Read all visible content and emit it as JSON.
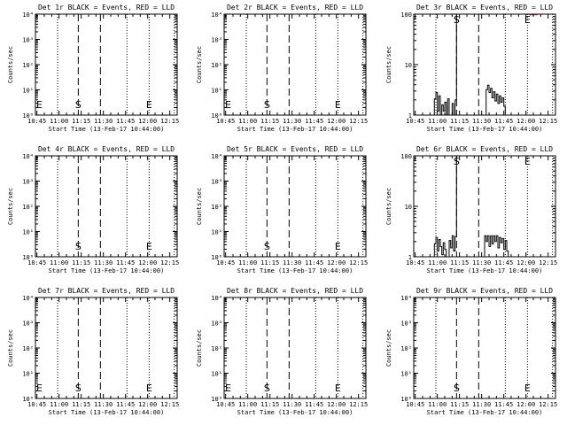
{
  "figure": {
    "background": "#ffffff",
    "event_color": "#000000",
    "lld_color": "#ff0000"
  },
  "chart_data": [
    {
      "type": "line",
      "title": "Det 1r BLACK = Events, RED = LLD",
      "xlabel": "Start Time (13-Feb-17 10:44:00)",
      "ylabel": "Counts/sec",
      "x_ticks": [
        "10:45",
        "11:00",
        "11:15",
        "11:30",
        "11:45",
        "12:00",
        "12:15"
      ],
      "xlim": [
        "10:44",
        "12:20"
      ],
      "y_scale": "log",
      "ylim": [
        1,
        10000
      ],
      "y_ticks": [
        "10⁰",
        "10¹",
        "10²",
        "10³",
        "10⁴"
      ],
      "dotted_lines": [
        "10:59",
        "11:46",
        "12:01",
        "12:18"
      ],
      "dashed_lines": [
        "11:13",
        "11:28"
      ],
      "markers": [
        {
          "text": "E",
          "at": "10:45"
        },
        {
          "text": "S",
          "at": "11:13"
        },
        {
          "text": "E",
          "at": "12:01"
        }
      ],
      "series": []
    },
    {
      "type": "line",
      "title": "Det 2r BLACK = Events, RED = LLD",
      "xlabel": "Start Time (13-Feb-17 10:44:00)",
      "ylabel": "Counts/sec",
      "x_ticks": [
        "10:45",
        "11:00",
        "11:15",
        "11:30",
        "11:45",
        "12:00",
        "12:15"
      ],
      "xlim": [
        "10:44",
        "12:20"
      ],
      "y_scale": "log",
      "ylim": [
        1,
        10000
      ],
      "y_ticks": [
        "10⁰",
        "10¹",
        "10²",
        "10³",
        "10⁴"
      ],
      "dotted_lines": [
        "10:59",
        "11:46",
        "12:01",
        "12:18"
      ],
      "dashed_lines": [
        "11:13",
        "11:28"
      ],
      "markers": [
        {
          "text": "E",
          "at": "10:45"
        },
        {
          "text": "S",
          "at": "11:13"
        },
        {
          "text": "E",
          "at": "12:01"
        }
      ],
      "series": []
    },
    {
      "type": "line",
      "title": "Det 3r BLACK = Events, RED = LLD",
      "xlabel": "Start Time (13-Feb-17 10:44:00)",
      "ylabel": "Counts/sec",
      "x_ticks": [
        "10:45",
        "11:00",
        "11:15",
        "11:30",
        "11:45",
        "12:00",
        "12:15"
      ],
      "xlim": [
        "10:44",
        "12:20"
      ],
      "y_scale": "log",
      "ylim": [
        1,
        100
      ],
      "y_ticks": [
        "1",
        "10",
        "100"
      ],
      "dotted_lines": [
        "10:59",
        "11:46",
        "12:01",
        "12:18"
      ],
      "dashed_lines": [
        "11:13",
        "11:28"
      ],
      "markers": [
        {
          "text": "S",
          "at": "11:13"
        },
        {
          "text": "E",
          "at": "12:01"
        }
      ],
      "series": [
        {
          "color": "#000000",
          "points": [
            [
              "10:58",
              1
            ],
            [
              "10:58",
              2.1
            ],
            [
              "10:59",
              2.1
            ],
            [
              "10:59",
              2.8
            ],
            [
              "11:00",
              2.8
            ],
            [
              "11:00",
              1.2
            ],
            [
              "11:01",
              1.2
            ],
            [
              "11:01",
              2.4
            ],
            [
              "11:02",
              2.4
            ],
            [
              "11:02",
              1
            ],
            [
              "11:03",
              1
            ],
            [
              "11:03",
              1.6
            ],
            [
              "11:04",
              1.6
            ],
            [
              "11:04",
              1.2
            ],
            [
              "11:05",
              1.2
            ],
            [
              "11:05",
              1.8
            ],
            [
              "11:06",
              1.8
            ],
            [
              "11:06",
              1
            ],
            [
              "11:07",
              1
            ],
            [
              "11:07",
              2.1
            ],
            [
              "11:08",
              2.1
            ],
            [
              "11:08",
              1
            ],
            [
              "11:10",
              1
            ],
            [
              "11:10",
              1.7
            ],
            [
              "11:11",
              1.7
            ],
            [
              "11:11",
              1
            ],
            [
              "11:12",
              1
            ],
            [
              "11:12",
              2.0
            ],
            [
              "11:13",
              2.0
            ],
            [
              "11:13",
              100
            ]
          ]
        },
        {
          "color": "#000000",
          "points": [
            [
              "11:33",
              1
            ],
            [
              "11:33",
              3.2
            ],
            [
              "11:34",
              3.2
            ],
            [
              "11:34",
              3.9
            ],
            [
              "11:35",
              3.9
            ],
            [
              "11:35",
              2.8
            ],
            [
              "11:36",
              2.8
            ],
            [
              "11:36",
              3.4
            ],
            [
              "11:37",
              3.4
            ],
            [
              "11:37",
              2.2
            ],
            [
              "11:38",
              2.2
            ],
            [
              "11:38",
              2.9
            ],
            [
              "11:39",
              2.9
            ],
            [
              "11:39",
              1.9
            ],
            [
              "11:40",
              1.9
            ],
            [
              "11:40",
              2.6
            ],
            [
              "11:41",
              2.6
            ],
            [
              "11:41",
              1.7
            ],
            [
              "11:42",
              1.7
            ],
            [
              "11:42",
              2.4
            ],
            [
              "11:43",
              2.4
            ],
            [
              "11:43",
              1.8
            ],
            [
              "11:44",
              1.8
            ],
            [
              "11:44",
              2.2
            ],
            [
              "11:45",
              2.2
            ],
            [
              "11:45",
              1.5
            ],
            [
              "11:46",
              1.5
            ],
            [
              "11:46",
              1
            ]
          ]
        },
        {
          "color": "#ff0000",
          "points": [
            [
              "12:02",
              100
            ],
            [
              "12:03",
              96
            ],
            [
              "12:04",
              100
            ],
            [
              "12:05",
              95
            ],
            [
              "12:06",
              100
            ],
            [
              "12:07",
              97
            ],
            [
              "12:08",
              100
            ]
          ]
        }
      ]
    },
    {
      "type": "line",
      "title": "Det 4r BLACK = Events, RED = LLD",
      "xlabel": "Start Time (13-Feb-17 10:44:00)",
      "ylabel": "Counts/sec",
      "x_ticks": [
        "10:45",
        "11:00",
        "11:15",
        "11:30",
        "11:45",
        "12:00",
        "12:15"
      ],
      "xlim": [
        "10:44",
        "12:20"
      ],
      "y_scale": "log",
      "ylim": [
        1,
        10000
      ],
      "y_ticks": [
        "10⁰",
        "10¹",
        "10²",
        "10³",
        "10⁴"
      ],
      "dotted_lines": [
        "10:59",
        "11:46",
        "12:01",
        "12:18"
      ],
      "dashed_lines": [
        "11:13",
        "11:28"
      ],
      "markers": [
        {
          "text": "S",
          "at": "11:13"
        },
        {
          "text": "E",
          "at": "12:01"
        }
      ],
      "series": []
    },
    {
      "type": "line",
      "title": "Det 5r BLACK = Events, RED = LLD",
      "xlabel": "Start Time (13-Feb-17 10:44:00)",
      "ylabel": "Counts/sec",
      "x_ticks": [
        "10:45",
        "11:00",
        "11:15",
        "11:30",
        "11:45",
        "12:00",
        "12:15"
      ],
      "xlim": [
        "10:44",
        "12:20"
      ],
      "y_scale": "log",
      "ylim": [
        1,
        10000
      ],
      "y_ticks": [
        "10⁰",
        "10¹",
        "10²",
        "10³",
        "10⁴"
      ],
      "dotted_lines": [
        "10:59",
        "11:46",
        "12:01",
        "12:18"
      ],
      "dashed_lines": [
        "11:13",
        "11:28"
      ],
      "markers": [
        {
          "text": "S",
          "at": "11:13"
        },
        {
          "text": "E",
          "at": "12:01"
        }
      ],
      "series": []
    },
    {
      "type": "line",
      "title": "Det 6r BLACK = Events, RED = LLD",
      "xlabel": "Start Time (13-Feb-17 10:44:00)",
      "ylabel": "Counts/sec",
      "x_ticks": [
        "10:45",
        "11:00",
        "11:15",
        "11:30",
        "11:45",
        "12:00",
        "12:15"
      ],
      "xlim": [
        "10:44",
        "12:20"
      ],
      "y_scale": "log",
      "ylim": [
        1,
        100
      ],
      "y_ticks": [
        "1",
        "10",
        "100"
      ],
      "dotted_lines": [
        "10:59",
        "11:46",
        "12:01",
        "12:18"
      ],
      "dashed_lines": [
        "11:13",
        "11:28"
      ],
      "markers": [
        {
          "text": "S",
          "at": "11:13"
        },
        {
          "text": "E",
          "at": "12:01"
        }
      ],
      "series": [
        {
          "color": "#000000",
          "points": [
            [
              "10:58",
              1
            ],
            [
              "10:58",
              1.8
            ],
            [
              "10:59",
              1.8
            ],
            [
              "10:59",
              2.4
            ],
            [
              "11:00",
              2.4
            ],
            [
              "11:00",
              1.3
            ],
            [
              "11:01",
              1.3
            ],
            [
              "11:01",
              2.2
            ],
            [
              "11:02",
              2.2
            ],
            [
              "11:02",
              1.6
            ],
            [
              "11:03",
              1.6
            ],
            [
              "11:03",
              1.1
            ],
            [
              "11:04",
              1.1
            ],
            [
              "11:04",
              1.9
            ],
            [
              "11:05",
              1.9
            ],
            [
              "11:05",
              1.4
            ],
            [
              "11:06",
              1.4
            ],
            [
              "11:06",
              1
            ],
            [
              "11:08",
              1
            ],
            [
              "11:08",
              2.1
            ],
            [
              "11:09",
              2.1
            ],
            [
              "11:09",
              1.5
            ],
            [
              "11:10",
              1.5
            ],
            [
              "11:10",
              2.6
            ],
            [
              "11:11",
              2.6
            ],
            [
              "11:11",
              1.3
            ],
            [
              "11:12",
              1.3
            ],
            [
              "11:12",
              2.5
            ],
            [
              "11:13",
              2.5
            ],
            [
              "11:13",
              100
            ]
          ]
        },
        {
          "color": "#000000",
          "points": [
            [
              "11:32",
              1
            ],
            [
              "11:32",
              2.6
            ],
            [
              "11:33",
              2.6
            ],
            [
              "11:33",
              2.0
            ],
            [
              "11:34",
              2.0
            ],
            [
              "11:34",
              2.6
            ],
            [
              "11:35",
              2.6
            ],
            [
              "11:35",
              1.6
            ],
            [
              "11:36",
              1.6
            ],
            [
              "11:36",
              2.6
            ],
            [
              "11:37",
              2.6
            ],
            [
              "11:37",
              1.8
            ],
            [
              "11:38",
              1.8
            ],
            [
              "11:38",
              2.6
            ],
            [
              "11:39",
              2.6
            ],
            [
              "11:39",
              2.0
            ],
            [
              "11:40",
              2.0
            ],
            [
              "11:40",
              2.6
            ],
            [
              "11:41",
              2.6
            ],
            [
              "11:41",
              1.5
            ],
            [
              "11:42",
              1.5
            ],
            [
              "11:42",
              2.4
            ],
            [
              "11:43",
              2.4
            ],
            [
              "11:43",
              1.9
            ],
            [
              "11:44",
              1.9
            ],
            [
              "11:44",
              2.3
            ],
            [
              "11:45",
              2.3
            ],
            [
              "11:45",
              1.4
            ],
            [
              "11:46",
              1.4
            ],
            [
              "11:46",
              2.1
            ],
            [
              "11:47",
              2.1
            ],
            [
              "11:47",
              1.3
            ],
            [
              "11:48",
              1.3
            ],
            [
              "11:48",
              1
            ]
          ]
        }
      ]
    },
    {
      "type": "line",
      "title": "Det 7r BLACK = Events, RED = LLD",
      "xlabel": "Start Time (13-Feb-17 10:44:00)",
      "ylabel": "Counts/sec",
      "x_ticks": [
        "10:45",
        "11:00",
        "11:15",
        "11:30",
        "11:45",
        "12:00",
        "12:15"
      ],
      "xlim": [
        "10:44",
        "12:20"
      ],
      "y_scale": "log",
      "ylim": [
        1,
        10000
      ],
      "y_ticks": [
        "10⁰",
        "10¹",
        "10²",
        "10³",
        "10⁴"
      ],
      "dotted_lines": [
        "10:59",
        "11:46",
        "12:01",
        "12:18"
      ],
      "dashed_lines": [
        "11:13",
        "11:28"
      ],
      "markers": [
        {
          "text": "E",
          "at": "10:45"
        },
        {
          "text": "S",
          "at": "11:13"
        },
        {
          "text": "E",
          "at": "12:01"
        }
      ],
      "series": []
    },
    {
      "type": "line",
      "title": "Det 8r BLACK = Events, RED = LLD",
      "xlabel": "Start Time (13-Feb-17 10:44:00)",
      "ylabel": "Counts/sec",
      "x_ticks": [
        "10:45",
        "11:00",
        "11:15",
        "11:30",
        "11:45",
        "12:00",
        "12:15"
      ],
      "xlim": [
        "10:44",
        "12:20"
      ],
      "y_scale": "log",
      "ylim": [
        1,
        10000
      ],
      "y_ticks": [
        "10⁰",
        "10¹",
        "10²",
        "10³",
        "10⁴"
      ],
      "dotted_lines": [
        "10:59",
        "11:46",
        "12:01",
        "12:18"
      ],
      "dashed_lines": [
        "11:13",
        "11:28"
      ],
      "markers": [
        {
          "text": "E",
          "at": "10:45"
        },
        {
          "text": "S",
          "at": "11:13"
        },
        {
          "text": "E",
          "at": "12:01"
        }
      ],
      "series": []
    },
    {
      "type": "line",
      "title": "Det 9r BLACK = Events, RED = LLD",
      "xlabel": "Start Time (13-Feb-17 10:44:00)",
      "ylabel": "Counts/sec",
      "x_ticks": [
        "10:45",
        "11:00",
        "11:15",
        "11:30",
        "11:45",
        "12:00",
        "12:15"
      ],
      "xlim": [
        "10:44",
        "12:20"
      ],
      "y_scale": "log",
      "ylim": [
        1,
        10000
      ],
      "y_ticks": [
        "10⁰",
        "10¹",
        "10²",
        "10³",
        "10⁴"
      ],
      "dotted_lines": [
        "10:59",
        "11:46",
        "12:01",
        "12:18"
      ],
      "dashed_lines": [
        "11:13",
        "11:28"
      ],
      "markers": [
        {
          "text": "S",
          "at": "11:13"
        },
        {
          "text": "E",
          "at": "12:01"
        }
      ],
      "series": []
    }
  ]
}
